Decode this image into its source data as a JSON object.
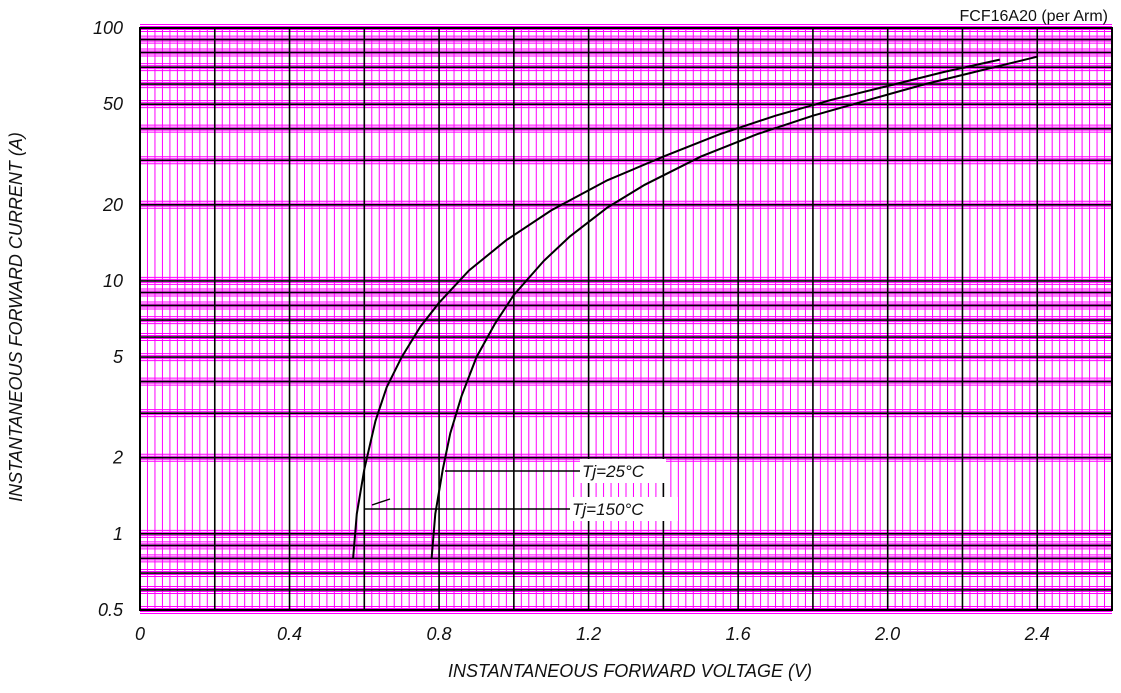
{
  "chart_data": {
    "type": "line",
    "title": "FCF16A20 (per Arm)",
    "xlabel": "INSTANTANEOUS FORWARD VOLTAGE (V)",
    "ylabel": "INSTANTANEOUS FORWARD CURRENT (A)",
    "xlim": [
      0,
      2.6
    ],
    "ylim": [
      0.5,
      100
    ],
    "y_scale": "log",
    "grid": true,
    "x_ticks": [
      "0",
      "0.4",
      "0.8",
      "1.2",
      "1.6",
      "2.0",
      "2.4"
    ],
    "x_tick_values": [
      0,
      0.4,
      0.8,
      1.2,
      1.6,
      2.0,
      2.4
    ],
    "y_ticks": [
      "100",
      "50",
      "20",
      "10",
      "5",
      "2",
      "1",
      "0.5"
    ],
    "y_tick_values": [
      100,
      50,
      20,
      10,
      5,
      2,
      1,
      0.5
    ],
    "colors": {
      "grid_major": "#000000",
      "grid_minor": "#ff00ff",
      "curve": "#000000"
    },
    "series": [
      {
        "name": "Tj=150°C",
        "x": [
          0.57,
          0.58,
          0.6,
          0.63,
          0.66,
          0.7,
          0.75,
          0.8,
          0.88,
          0.98,
          1.1,
          1.25,
          1.4,
          1.55,
          1.7,
          1.85,
          2.0,
          2.15,
          2.3
        ],
        "y": [
          0.8,
          1.2,
          1.8,
          2.8,
          3.8,
          5.0,
          6.6,
          8.2,
          11.0,
          14.5,
          19.0,
          25.0,
          31.0,
          38.0,
          45.0,
          52.0,
          59.0,
          67.0,
          75.0
        ]
      },
      {
        "name": "Tj=25°C",
        "x": [
          0.78,
          0.79,
          0.81,
          0.83,
          0.86,
          0.9,
          0.95,
          1.0,
          1.08,
          1.15,
          1.25,
          1.35,
          1.5,
          1.65,
          1.8,
          1.95,
          2.1,
          2.25,
          2.4
        ],
        "y": [
          0.8,
          1.2,
          1.8,
          2.5,
          3.5,
          5.0,
          6.8,
          8.8,
          12.0,
          15.0,
          19.5,
          24.0,
          31.0,
          38.0,
          45.0,
          52.0,
          60.0,
          68.0,
          77.0
        ]
      }
    ],
    "annotations": [
      "Tj=25°C",
      "Tj=150°C"
    ]
  }
}
